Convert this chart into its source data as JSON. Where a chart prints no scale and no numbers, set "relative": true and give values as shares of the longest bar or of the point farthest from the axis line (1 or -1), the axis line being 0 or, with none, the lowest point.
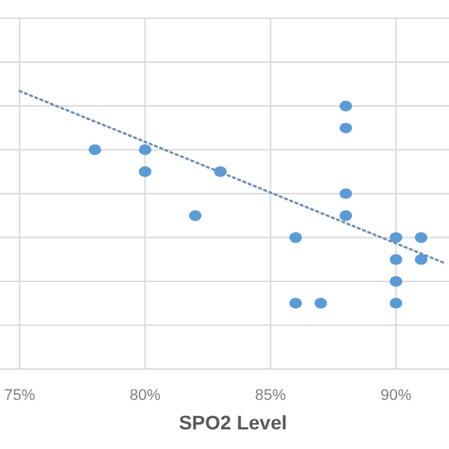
{
  "chart_data": {
    "type": "scatter",
    "xlabel": "SPO2 Level",
    "relative": true,
    "grid": true,
    "marker": "circle",
    "xlim": [
      75,
      92
    ],
    "xticks": [
      {
        "value": 75,
        "label": "75%"
      },
      {
        "value": 80,
        "label": "80%"
      },
      {
        "value": 85,
        "label": "85%"
      },
      {
        "value": 90,
        "label": "90%"
      }
    ],
    "series": [
      {
        "color": "#5b9bd5",
        "x": [
          78,
          80,
          80,
          82,
          83,
          86,
          86,
          87,
          88,
          88,
          88,
          88,
          90,
          90,
          90,
          90,
          91,
          91
        ],
        "values": [
          0.789,
          0.789,
          0.71,
          0.552,
          0.71,
          0.473,
          0.237,
          0.237,
          0.946,
          0.867,
          0.631,
          0.552,
          0.473,
          0.394,
          0.315,
          0.237,
          0.473,
          0.394
        ]
      },
      {
        "type": "line",
        "color": "#6f8fb3",
        "line_style": "dotted",
        "marker": "none",
        "x": [
          75,
          92
        ],
        "values": [
          1,
          0.379
        ]
      }
    ]
  }
}
